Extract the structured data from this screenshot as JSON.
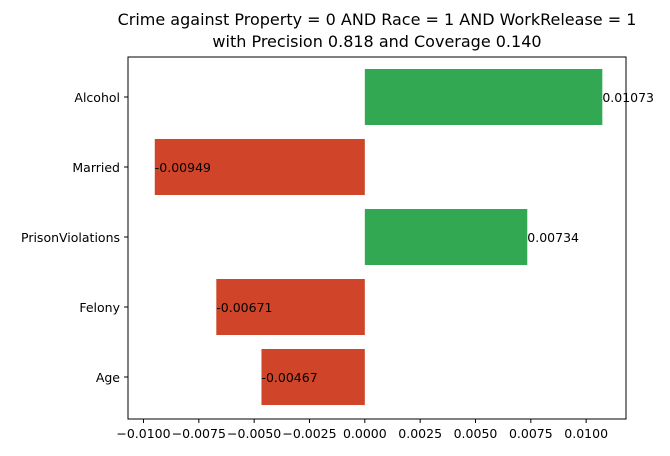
{
  "chart_data": {
    "type": "bar",
    "orientation": "horizontal",
    "title": "Crime against Property = 0 AND Race = 1 AND WorkRelease = 1",
    "subtitle": "with Precision 0.818 and Coverage 0.140",
    "xlabel": "",
    "ylabel": "",
    "categories": [
      "Alcohol",
      "Married",
      "PrisonViolations",
      "Felony",
      "Age"
    ],
    "values": [
      0.01073,
      -0.00949,
      0.00734,
      -0.00671,
      -0.00467
    ],
    "value_labels": [
      "0.01073",
      "-0.00949",
      "0.00734",
      "-0.00671",
      "-0.00467"
    ],
    "xlim": [
      -0.0107,
      0.0118
    ],
    "xticks": [
      -0.01,
      -0.0075,
      -0.005,
      -0.0025,
      0,
      0.0025,
      0.005,
      0.0075,
      0.01
    ],
    "xtick_labels": [
      "−0.0100",
      "−0.0075",
      "−0.0050",
      "−0.0025",
      "0.0000",
      "0.0025",
      "0.0050",
      "0.0075",
      "0.0100"
    ],
    "colors": {
      "positive": "#33a853",
      "negative": "#d0452a"
    },
    "grid": false,
    "legend": "none"
  }
}
